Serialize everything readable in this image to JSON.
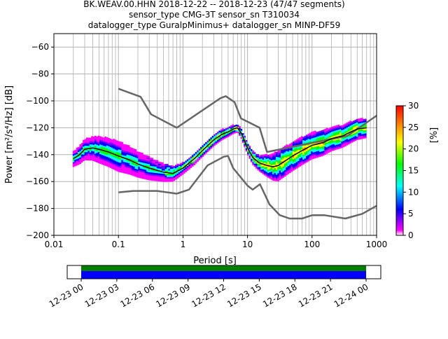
{
  "chart_data": {
    "type": "heatmap",
    "title_lines": [
      "BK.WEAV.00.HHN   2018-12-22 -- 2018-12-23  (47/47 segments)",
      "sensor_type CMG-3T sensor_sn T310034",
      "datalogger_type GuralpMinimus+ datalogger_sn MINP-DF59"
    ],
    "xlabel": "Period [s]",
    "ylabel": "Power [m²/s⁴/Hz] [dB]",
    "xscale": "log",
    "xlim": [
      0.01,
      1000
    ],
    "ylim": [
      -200,
      -50
    ],
    "xticks": [
      0.01,
      0.1,
      1,
      10,
      100,
      1000
    ],
    "xtick_labels": [
      "0.01",
      "0.1",
      "1",
      "10",
      "100",
      "1000"
    ],
    "yticks": [
      -200,
      -180,
      -160,
      -140,
      -120,
      -100,
      -80,
      -60
    ],
    "ytick_labels": [
      "−200",
      "−180",
      "−160",
      "−140",
      "−120",
      "−100",
      "−80",
      "−60"
    ],
    "grid": true,
    "colorbar": {
      "label": "[%]",
      "range": [
        0,
        30
      ],
      "ticks": [
        "0",
        "5",
        "10",
        "15",
        "20",
        "25",
        "30"
      ]
    },
    "mean_curve": {
      "period": [
        0.02,
        0.025,
        0.03,
        0.04,
        0.05,
        0.07,
        0.1,
        0.15,
        0.2,
        0.3,
        0.5,
        0.7,
        1,
        1.5,
        2,
        3,
        4,
        5,
        6,
        7,
        8,
        10,
        12,
        15,
        20,
        25,
        30,
        40,
        50,
        70,
        100,
        150,
        200,
        300,
        400,
        500,
        700
      ],
      "db": [
        -143,
        -140,
        -136,
        -135,
        -136,
        -138,
        -141,
        -144,
        -147,
        -150,
        -153,
        -154,
        -150,
        -143,
        -137,
        -129,
        -125,
        -123,
        -121,
        -120,
        -124,
        -135,
        -142,
        -146,
        -148,
        -149,
        -148,
        -144,
        -141,
        -137,
        -133,
        -131,
        -128,
        -126,
        -123,
        -121,
        -120
      ]
    },
    "spread_db": {
      "period": [
        0.02,
        0.05,
        0.1,
        0.3,
        1,
        3,
        7,
        15,
        30,
        100,
        700
      ],
      "db": [
        4,
        7,
        8,
        6,
        3,
        3,
        2,
        4,
        8,
        7,
        5
      ]
    },
    "nhnm": {
      "period": [
        0.1,
        0.22,
        0.32,
        0.8,
        3.8,
        4.6,
        6.3,
        7.9,
        15.4,
        20,
        354,
        1000
      ],
      "db": [
        -91,
        -97,
        -110,
        -120,
        -98,
        -96.5,
        -101,
        -113,
        -120,
        -138,
        -126,
        -111
      ]
    },
    "nlnm": {
      "period": [
        0.1,
        0.17,
        0.4,
        0.8,
        1.24,
        2.4,
        4.3,
        5,
        6,
        10,
        12,
        15.6,
        21.9,
        31.6,
        45,
        70,
        101,
        154,
        328,
        600,
        1000
      ],
      "db": [
        -168,
        -167,
        -167,
        -169,
        -166,
        -148,
        -141.5,
        -141,
        -150,
        -163,
        -166,
        -162,
        -177,
        -185,
        -187.5,
        -187.5,
        -185,
        -185,
        -187.5,
        -184,
        -178
      ]
    },
    "colors": {
      "mean": "#000000",
      "models": "#666666",
      "grid": "#b0b0b0",
      "coverage_data": "#0000ff",
      "coverage_used": "#008000"
    },
    "coverage": {
      "tick_labels": [
        "12-23 00",
        "12-23 03",
        "12-23 06",
        "12-23 09",
        "12-23 12",
        "12-23 15",
        "12-23 18",
        "12-23 21",
        "12-24 00"
      ]
    }
  }
}
